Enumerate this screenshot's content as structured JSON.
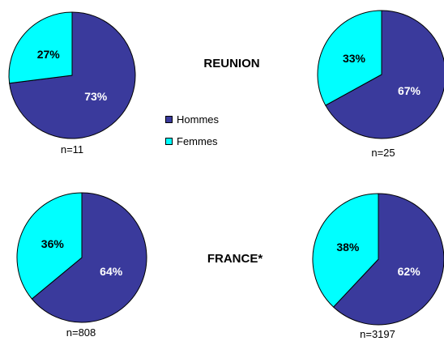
{
  "chart_data": {
    "type": "pie",
    "legend": {
      "position": "center",
      "items": [
        {
          "label": "Hommes",
          "color": "#3A3A9C"
        },
        {
          "label": "Femmes",
          "color": "#00FFFF"
        }
      ]
    },
    "region_labels": [
      "REUNION",
      "FRANCE*"
    ],
    "pies": [
      {
        "label": "n=11",
        "slices": [
          {
            "name": "Hommes",
            "value": 73,
            "text": "73%"
          },
          {
            "name": "Femmes",
            "value": 27,
            "text": "27%"
          }
        ]
      },
      {
        "label": "n=25",
        "slices": [
          {
            "name": "Hommes",
            "value": 67,
            "text": "67%"
          },
          {
            "name": "Femmes",
            "value": 33,
            "text": "33%"
          }
        ]
      },
      {
        "label": "n=808",
        "slices": [
          {
            "name": "Hommes",
            "value": 64,
            "text": "64%"
          },
          {
            "name": "Femmes",
            "value": 36,
            "text": "36%"
          }
        ]
      },
      {
        "label": "n=3197",
        "slices": [
          {
            "name": "Hommes",
            "value": 62,
            "text": "62%"
          },
          {
            "name": "Femmes",
            "value": 38,
            "text": "38%"
          }
        ]
      }
    ]
  }
}
